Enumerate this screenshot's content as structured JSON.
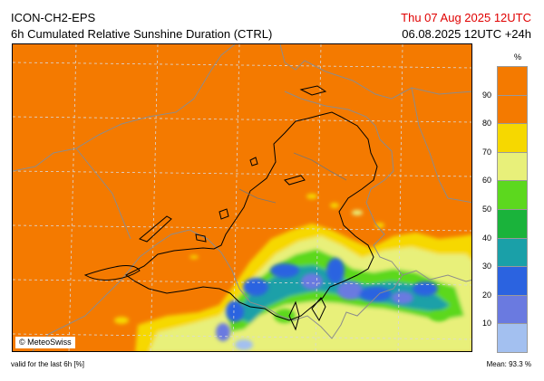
{
  "header": {
    "title": "ICON-CH2-EPS",
    "subtitle": "6h Cumulated Relative Sunshine Duration (CTRL)",
    "date": "Thu 07 Aug 2025 12UTC",
    "run": "06.08.2025 12UTC +24h",
    "date_color": "#e00000"
  },
  "map": {
    "credit": "© MeteoSwiss",
    "background_color": "#f47a00"
  },
  "legend": {
    "unit": "%",
    "levels": [
      "10",
      "20",
      "30",
      "40",
      "50",
      "60",
      "70",
      "80",
      "90"
    ],
    "colors": [
      "#a3c0f0",
      "#6a7ae0",
      "#2b63e0",
      "#1aa0a8",
      "#1ab33b",
      "#5cd81e",
      "#e8f07a",
      "#f6d800",
      "#f47a00",
      "#f47a00"
    ]
  },
  "footer": {
    "valid": "valid for the last 6h [%]",
    "mean": "Mean:   93.3 %"
  }
}
